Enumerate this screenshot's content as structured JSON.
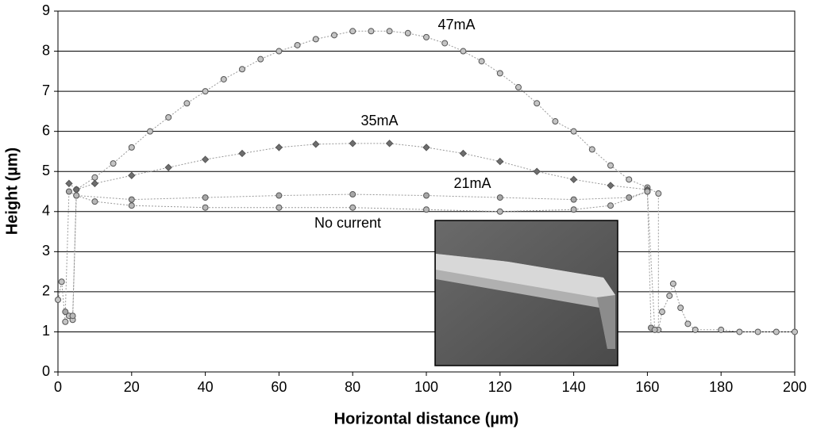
{
  "chart_data": {
    "type": "scatter",
    "xlabel": "Horizontal distance (µm)",
    "ylabel": "Height (µm)",
    "xlim": [
      0,
      200
    ],
    "xticks": [
      0,
      20,
      40,
      60,
      80,
      100,
      120,
      140,
      160,
      180,
      200
    ],
    "ylim": [
      0,
      9
    ],
    "yticks": [
      0,
      1,
      2,
      3,
      4,
      5,
      6,
      7,
      8,
      9
    ],
    "grid": true,
    "series": [
      {
        "name": "47mA",
        "color": "#c4c4c4",
        "x": [
          0,
          1,
          2,
          3,
          4,
          5,
          10,
          15,
          20,
          25,
          30,
          35,
          40,
          45,
          50,
          55,
          60,
          65,
          70,
          75,
          80,
          85,
          90,
          95,
          100,
          105,
          110,
          115,
          120,
          125,
          130,
          135,
          140,
          145,
          150,
          155,
          160,
          163,
          163,
          164,
          166,
          167,
          169,
          171,
          173,
          180,
          185,
          190,
          195,
          200
        ],
        "values": [
          1.8,
          2.25,
          1.25,
          1.4,
          1.3,
          4.55,
          4.85,
          5.2,
          5.6,
          6.0,
          6.35,
          6.7,
          7.0,
          7.3,
          7.55,
          7.8,
          8.0,
          8.15,
          8.3,
          8.4,
          8.5,
          8.5,
          8.5,
          8.45,
          8.35,
          8.2,
          8.0,
          7.75,
          7.45,
          7.1,
          6.7,
          6.25,
          6.0,
          5.55,
          5.15,
          4.8,
          4.6,
          4.45,
          1.05,
          1.5,
          1.9,
          2.2,
          1.6,
          1.2,
          1.05,
          1.05,
          1.0,
          1.0,
          1.0,
          1.0
        ]
      },
      {
        "name": "35mA",
        "color": "#6e6e6e",
        "x": [
          3,
          5,
          10,
          20,
          30,
          40,
          50,
          60,
          70,
          80,
          90,
          100,
          110,
          120,
          130,
          140,
          150,
          160
        ],
        "values": [
          4.7,
          4.55,
          4.7,
          4.9,
          5.1,
          5.3,
          5.45,
          5.6,
          5.68,
          5.7,
          5.7,
          5.6,
          5.45,
          5.25,
          5.0,
          4.8,
          4.65,
          4.55
        ]
      },
      {
        "name": "21mA",
        "color": "#a8a8a8",
        "x": [
          2,
          3,
          5,
          20,
          40,
          60,
          80,
          100,
          120,
          140,
          155,
          160,
          161
        ],
        "values": [
          1.5,
          4.5,
          4.4,
          4.3,
          4.35,
          4.4,
          4.43,
          4.4,
          4.35,
          4.3,
          4.35,
          4.5,
          1.1
        ]
      },
      {
        "name": "No current",
        "color": "#b8b8b8",
        "x": [
          4,
          5,
          10,
          20,
          40,
          60,
          80,
          100,
          120,
          140,
          150,
          160,
          162
        ],
        "values": [
          1.4,
          4.4,
          4.25,
          4.15,
          4.1,
          4.1,
          4.1,
          4.05,
          4.0,
          4.05,
          4.15,
          4.5,
          1.05
        ]
      }
    ]
  }
}
